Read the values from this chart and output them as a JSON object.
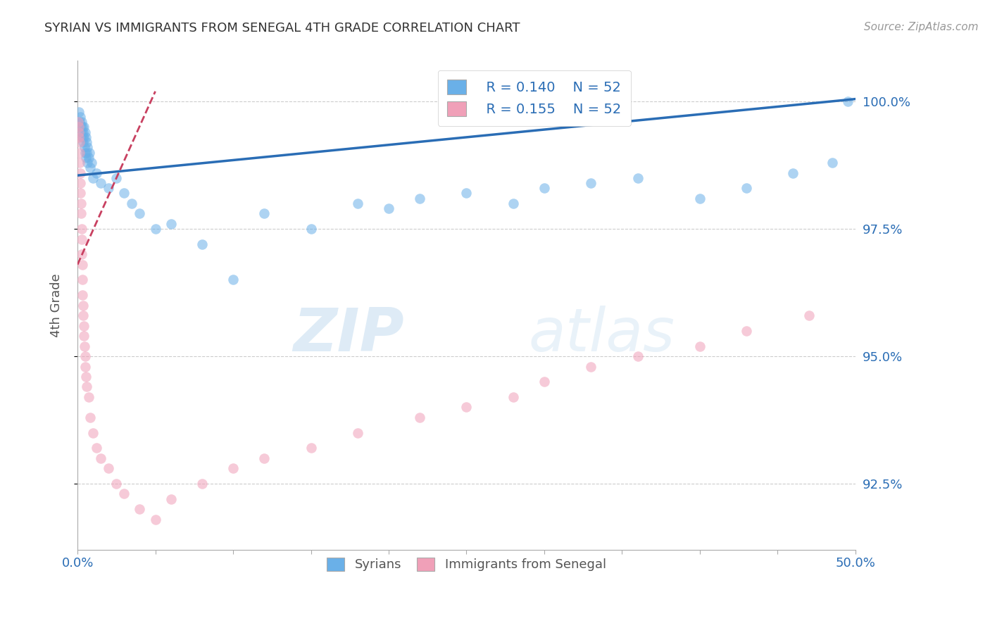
{
  "title": "SYRIAN VS IMMIGRANTS FROM SENEGAL 4TH GRADE CORRELATION CHART",
  "source_text": "Source: ZipAtlas.com",
  "ylabel": "4th Grade",
  "x_min": 0.0,
  "x_max": 50.0,
  "y_min": 91.2,
  "y_max": 100.8,
  "y_ticks": [
    92.5,
    95.0,
    97.5,
    100.0
  ],
  "x_ticks": [
    0.0,
    5.0,
    10.0,
    15.0,
    20.0,
    25.0,
    30.0,
    35.0,
    40.0,
    45.0,
    50.0
  ],
  "y_tick_labels": [
    "92.5%",
    "95.0%",
    "97.5%",
    "100.0%"
  ],
  "legend_r1": "R = 0.140",
  "legend_n1": "N = 52",
  "legend_r2": "R = 0.155",
  "legend_n2": "N = 52",
  "legend_label1": "Syrians",
  "legend_label2": "Immigrants from Senegal",
  "color_blue": "#6ab0e8",
  "color_pink": "#f0a0b8",
  "color_blue_line": "#2a6db5",
  "color_pink_line": "#c84060",
  "watermark_zip": "ZIP",
  "watermark_atlas": "atlas",
  "blue_scatter_x": [
    0.1,
    0.15,
    0.2,
    0.22,
    0.25,
    0.27,
    0.3,
    0.32,
    0.35,
    0.38,
    0.4,
    0.42,
    0.45,
    0.48,
    0.5,
    0.52,
    0.55,
    0.58,
    0.6,
    0.62,
    0.65,
    0.7,
    0.75,
    0.8,
    0.9,
    1.0,
    1.2,
    1.5,
    2.0,
    2.5,
    3.0,
    3.5,
    4.0,
    5.0,
    6.0,
    8.0,
    10.0,
    12.0,
    15.0,
    18.0,
    20.0,
    22.0,
    25.0,
    28.0,
    30.0,
    33.0,
    36.0,
    40.0,
    43.0,
    46.0,
    48.5,
    49.5
  ],
  "blue_scatter_y": [
    99.8,
    99.6,
    99.7,
    99.5,
    99.4,
    99.6,
    99.5,
    99.3,
    99.4,
    99.2,
    99.5,
    99.3,
    99.1,
    99.4,
    99.0,
    99.3,
    98.9,
    99.2,
    99.0,
    99.1,
    98.8,
    98.9,
    99.0,
    98.7,
    98.8,
    98.5,
    98.6,
    98.4,
    98.3,
    98.5,
    98.2,
    98.0,
    97.8,
    97.5,
    97.6,
    97.2,
    96.5,
    97.8,
    97.5,
    98.0,
    97.9,
    98.1,
    98.2,
    98.0,
    98.3,
    98.4,
    98.5,
    98.1,
    98.3,
    98.6,
    98.8,
    100.0
  ],
  "pink_scatter_x": [
    0.05,
    0.07,
    0.08,
    0.1,
    0.12,
    0.14,
    0.15,
    0.17,
    0.18,
    0.2,
    0.22,
    0.24,
    0.25,
    0.27,
    0.28,
    0.3,
    0.32,
    0.33,
    0.35,
    0.38,
    0.4,
    0.42,
    0.45,
    0.48,
    0.5,
    0.55,
    0.6,
    0.7,
    0.8,
    1.0,
    1.2,
    1.5,
    2.0,
    2.5,
    3.0,
    4.0,
    5.0,
    6.0,
    8.0,
    10.0,
    12.0,
    15.0,
    18.0,
    22.0,
    25.0,
    28.0,
    30.0,
    33.0,
    36.0,
    40.0,
    43.0,
    47.0
  ],
  "pink_scatter_y": [
    99.6,
    99.5,
    99.4,
    99.3,
    99.2,
    99.0,
    98.8,
    98.6,
    98.4,
    98.2,
    98.0,
    97.8,
    97.5,
    97.3,
    97.0,
    96.8,
    96.5,
    96.2,
    96.0,
    95.8,
    95.6,
    95.4,
    95.2,
    95.0,
    94.8,
    94.6,
    94.4,
    94.2,
    93.8,
    93.5,
    93.2,
    93.0,
    92.8,
    92.5,
    92.3,
    92.0,
    91.8,
    92.2,
    92.5,
    92.8,
    93.0,
    93.2,
    93.5,
    93.8,
    94.0,
    94.2,
    94.5,
    94.8,
    95.0,
    95.2,
    95.5,
    95.8
  ]
}
